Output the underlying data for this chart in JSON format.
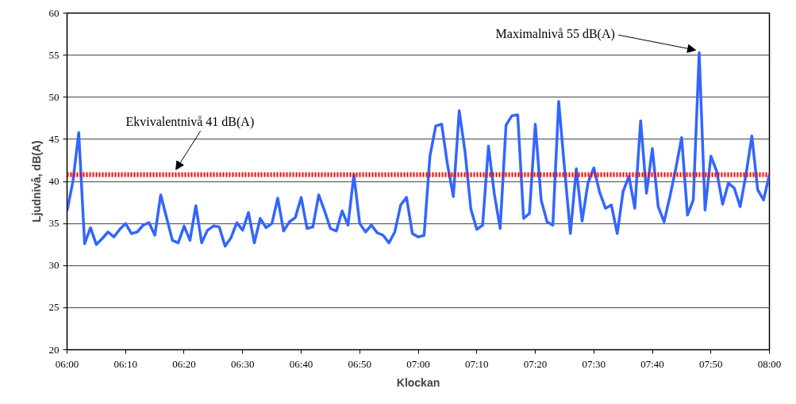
{
  "chart_data": {
    "type": "line",
    "xlabel": "Klockan",
    "ylabel": "Ljudnivå, dB(A)",
    "xlim": [
      6,
      8
    ],
    "ylim": [
      20,
      60
    ],
    "xticks": [
      {
        "value": 6,
        "label": "06:00"
      },
      {
        "value": 6.1667,
        "label": "06:10"
      },
      {
        "value": 6.3333,
        "label": "06:20"
      },
      {
        "value": 6.5,
        "label": "06:30"
      },
      {
        "value": 6.6667,
        "label": "06:40"
      },
      {
        "value": 6.8333,
        "label": "06:50"
      },
      {
        "value": 7,
        "label": "07:00"
      },
      {
        "value": 7.1667,
        "label": "07:10"
      },
      {
        "value": 7.3333,
        "label": "07:20"
      },
      {
        "value": 7.5,
        "label": "07:30"
      },
      {
        "value": 7.6667,
        "label": "07:40"
      },
      {
        "value": 7.8333,
        "label": "07:50"
      },
      {
        "value": 8,
        "label": "08:00"
      }
    ],
    "yticks": [
      20,
      25,
      30,
      35,
      40,
      45,
      50,
      55,
      60
    ],
    "grid": "y",
    "marker": "none",
    "line_style": "solid",
    "series": [
      {
        "color": "#3366ff",
        "x": [
          6,
          6.0167,
          6.0333,
          6.05,
          6.0667,
          6.0833,
          6.1,
          6.1167,
          6.1333,
          6.15,
          6.1667,
          6.1833,
          6.2,
          6.2167,
          6.2333,
          6.25,
          6.2667,
          6.2833,
          6.3,
          6.3167,
          6.3333,
          6.35,
          6.3667,
          6.3833,
          6.4,
          6.4167,
          6.4333,
          6.45,
          6.4667,
          6.4833,
          6.5,
          6.5167,
          6.5333,
          6.55,
          6.5667,
          6.5833,
          6.6,
          6.6167,
          6.6333,
          6.65,
          6.6667,
          6.6833,
          6.7,
          6.7167,
          6.7333,
          6.75,
          6.7667,
          6.7833,
          6.8,
          6.8167,
          6.8333,
          6.85,
          6.8667,
          6.8833,
          6.9,
          6.9167,
          6.9333,
          6.95,
          6.9667,
          6.9833,
          7,
          7.0167,
          7.0333,
          7.05,
          7.0667,
          7.0833,
          7.1,
          7.1167,
          7.1333,
          7.15,
          7.1667,
          7.1833,
          7.2,
          7.2167,
          7.2333,
          7.25,
          7.2667,
          7.2833,
          7.3,
          7.3167,
          7.3333,
          7.35,
          7.3667,
          7.3833,
          7.4,
          7.4167,
          7.4333,
          7.45,
          7.4667,
          7.4833,
          7.5,
          7.5167,
          7.5333,
          7.55,
          7.5667,
          7.5833,
          7.6,
          7.6167,
          7.6333,
          7.65,
          7.6667,
          7.6833,
          7.7,
          7.7167,
          7.7333,
          7.75,
          7.7667,
          7.7833,
          7.8,
          7.8167,
          7.8333,
          7.85,
          7.8667,
          7.8833,
          7.9,
          7.9167,
          7.9333,
          7.95,
          7.9667,
          7.9833,
          8
        ],
        "values": [
          36.5,
          40,
          45.8,
          32.6,
          34.5,
          32.5,
          33.2,
          34,
          33.4,
          34.3,
          35,
          33.8,
          34,
          34.8,
          35.1,
          33.6,
          38.4,
          35.7,
          33,
          32.7,
          34.7,
          33,
          37.1,
          32.7,
          34.2,
          34.7,
          34.6,
          32.3,
          33.3,
          35.1,
          34.2,
          36.3,
          32.7,
          35.6,
          34.5,
          35,
          38,
          34.1,
          35.2,
          35.7,
          38.1,
          34.4,
          34.6,
          38.4,
          36.5,
          34.4,
          34.1,
          36.5,
          34.8,
          40.8,
          35,
          34,
          34.8,
          33.9,
          33.6,
          32.7,
          34,
          37.2,
          38.1,
          33.8,
          33.4,
          33.6,
          43,
          46.6,
          46.8,
          42,
          38.2,
          48.4,
          43.5,
          36.7,
          34.3,
          34.8,
          44.2,
          38.5,
          34.4,
          46.7,
          47.8,
          47.9,
          35.6,
          36.2,
          46.8,
          37.8,
          35.2,
          34.8,
          49.5,
          41.5,
          33.8,
          41.5,
          35.3,
          39.8,
          41.6,
          38.7,
          36.8,
          37.2,
          33.8,
          38.8,
          40.6,
          36.8,
          47.2,
          38.6,
          43.9,
          37,
          35.2,
          38.2,
          41.5,
          45.2,
          36,
          37.8,
          55.3,
          36.6,
          43,
          41.2,
          37.3,
          39.8,
          39.2,
          37,
          40.8,
          45.4,
          39,
          37.8,
          40.8
        ]
      }
    ],
    "ref_lines": [
      {
        "axis": "y",
        "value": 40.8,
        "label": "Ekvivalentnivå 41 dB(A)",
        "color": "#ff0000",
        "line_style": "dotted"
      }
    ],
    "annotations": [
      {
        "text": "Maximalnivå 55 dB(A)",
        "x": 7.8,
        "y": 55.3
      }
    ]
  }
}
